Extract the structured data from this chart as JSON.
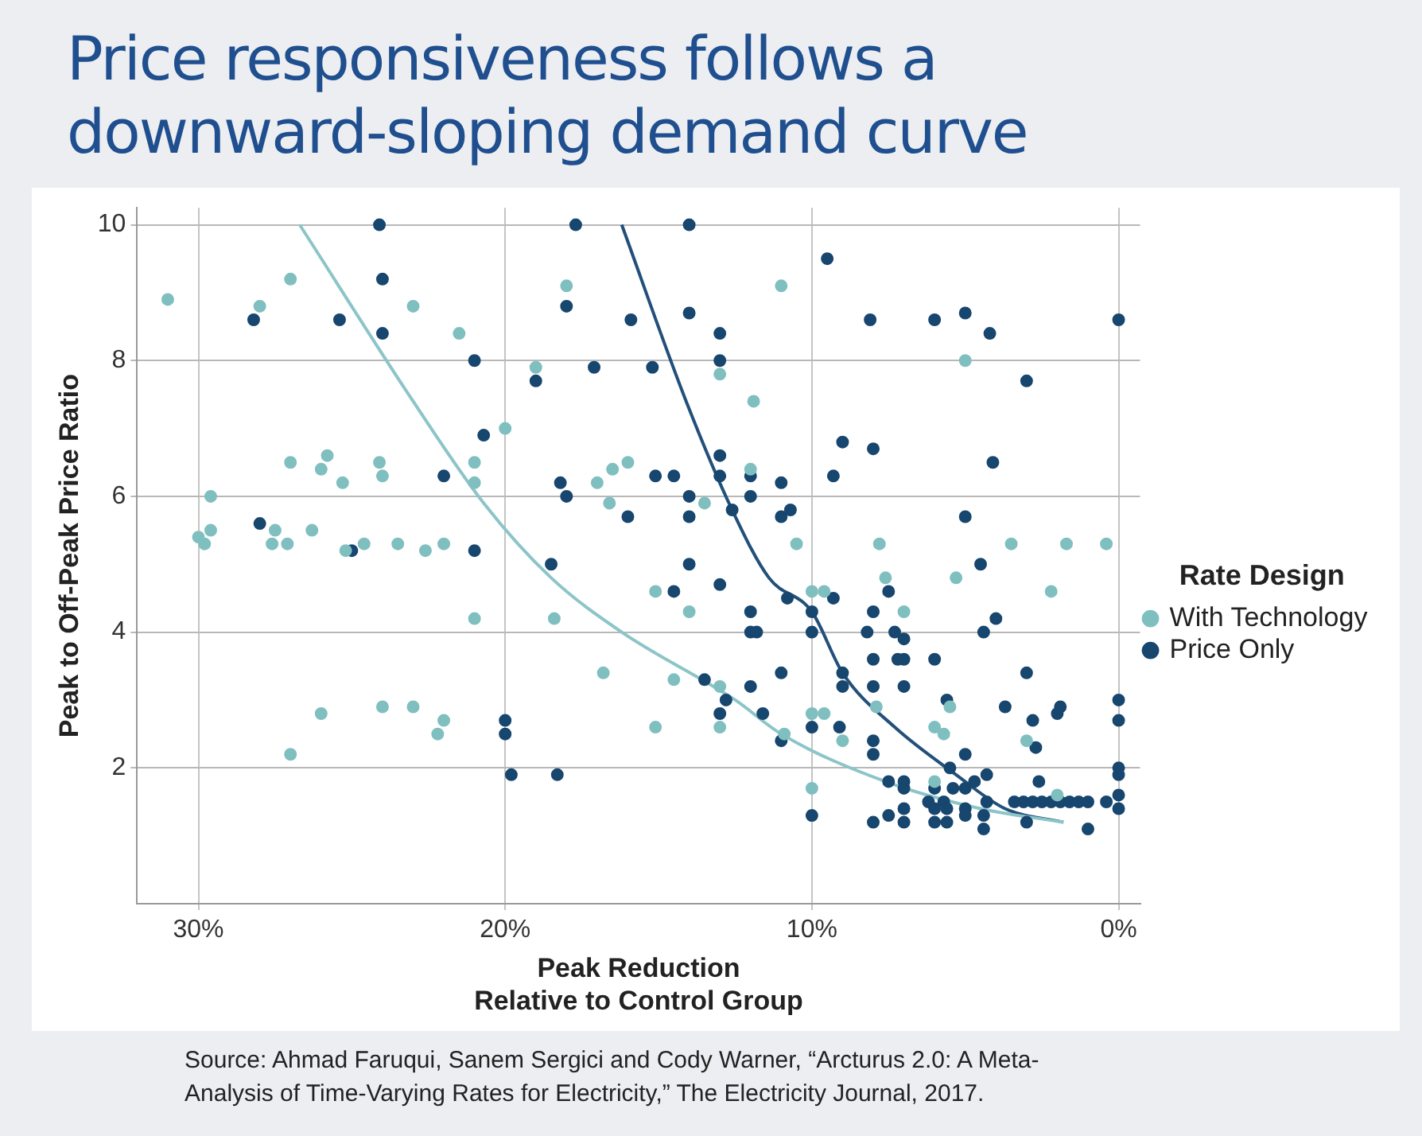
{
  "chart_data": {
    "type": "scatter",
    "title": "Price responsiveness follows a downward-sloping demand curve",
    "xlabel": "Peak Reduction\nRelative to Control Group",
    "ylabel": "Peak to Off-Peak Price Ratio",
    "legend_title": "Rate Design",
    "annotations": [
      "Source: Ahmad Faruqui, Sanem Sergici and Cody Warner, “Arcturus 2.0: A Meta-Analysis of Time-Varying Rates for Electricity,” The Electricity Journal, 2017."
    ],
    "xlim": [
      32,
      -0.7
    ],
    "ylim": [
      0,
      10.25
    ],
    "xticks": [
      {
        "value": 30,
        "label": "30%"
      },
      {
        "value": 20,
        "label": "20%"
      },
      {
        "value": 10,
        "label": "10%"
      },
      {
        "value": 0,
        "label": "0%"
      }
    ],
    "yticks": [
      2,
      4,
      6,
      8,
      10
    ],
    "grid": true,
    "legend": "right",
    "marker": "circle",
    "series": [
      {
        "name": "With Technology",
        "color": "#80bfc0",
        "x": [
          31.0,
          27.0,
          28.0,
          23.0,
          21.5,
          19.0,
          18.0,
          20.0,
          27.0,
          25.8,
          26.0,
          25.3,
          24.1,
          24.0,
          21.0,
          21.0,
          17.0,
          16.5,
          16.6,
          29.6,
          29.6,
          30.0,
          29.8,
          27.5,
          27.6,
          27.1,
          26.3,
          25.2,
          24.6,
          23.5,
          22.6,
          22.0,
          11.0,
          13.0,
          11.9,
          16.0,
          13.5,
          12.0,
          10.5,
          7.8,
          3.5,
          1.7,
          0.4,
          7.6,
          5.3,
          5.0,
          21.0,
          18.4,
          16.8,
          26.0,
          27.0,
          24.0,
          23.0,
          22.0,
          22.2,
          15.1,
          14.0,
          10.0,
          9.6,
          7.0,
          2.2,
          14.5,
          13.0,
          7.9,
          5.5,
          15.1,
          13.0,
          10.9,
          10.0,
          9.6,
          9.0,
          6.0,
          5.7,
          3.0,
          6.0,
          10.0,
          2.0
        ],
        "values": [
          8.9,
          9.2,
          8.8,
          8.8,
          8.4,
          7.9,
          9.1,
          7.0,
          6.5,
          6.6,
          6.4,
          6.2,
          6.5,
          6.3,
          6.5,
          6.2,
          6.2,
          6.4,
          5.9,
          6.0,
          5.5,
          5.4,
          5.3,
          5.5,
          5.3,
          5.3,
          5.5,
          5.2,
          5.3,
          5.3,
          5.2,
          5.3,
          9.1,
          7.8,
          7.4,
          6.5,
          5.9,
          6.4,
          5.3,
          5.3,
          5.3,
          5.3,
          5.3,
          4.8,
          4.8,
          8.0,
          4.2,
          4.2,
          3.4,
          2.8,
          2.2,
          2.9,
          2.9,
          2.7,
          2.5,
          4.6,
          4.3,
          4.6,
          4.6,
          4.3,
          4.6,
          3.3,
          3.2,
          2.9,
          2.9,
          2.6,
          2.6,
          2.5,
          2.8,
          2.8,
          2.4,
          2.6,
          2.5,
          2.4,
          1.8,
          1.7,
          1.6
        ]
      },
      {
        "name": "Price Only",
        "color": "#17466f",
        "x": [
          28.2,
          25.4,
          24.1,
          24.0,
          24.0,
          21.0,
          19.0,
          17.7,
          18.0,
          17.1,
          20.7,
          22.0,
          18.2,
          18.0,
          28.0,
          25.0,
          21.0,
          18.5,
          14.0,
          9.5,
          15.9,
          14.0,
          13.0,
          13.0,
          15.2,
          8.1,
          6.0,
          5.0,
          4.2,
          3.0,
          0.0,
          15.1,
          14.5,
          14.0,
          16.0,
          14.0,
          13.0,
          13.0,
          12.6,
          12.0,
          12.0,
          11.0,
          11.0,
          10.7,
          9.3,
          9.0,
          8.0,
          4.1,
          5.0,
          4.5,
          14.0,
          20.0,
          20.0,
          19.8,
          18.3,
          14.5,
          13.0,
          12.0,
          12.0,
          11.8,
          10.8,
          10.0,
          10.0,
          9.3,
          7.5,
          8.0,
          8.2,
          7.3,
          7.0,
          7.2,
          7.0,
          8.0,
          6.0,
          4.4,
          4.0,
          13.5,
          12.8,
          12.0,
          11.0,
          9.0,
          9.0,
          8.0,
          7.0,
          5.6,
          3.7,
          3.0,
          1.9,
          2.0,
          2.8,
          0.0,
          0.0,
          13.0,
          11.6,
          11.0,
          10.0,
          9.1,
          8.0,
          8.0,
          5.0,
          2.7,
          5.5,
          7.5,
          7.0,
          7.0,
          6.0,
          5.4,
          5.0,
          4.7,
          4.3,
          2.6,
          6.2,
          5.7,
          4.3,
          3.4,
          3.1,
          2.8,
          2.5,
          2.2,
          1.9,
          1.6,
          1.3,
          1.0,
          0.4,
          0.0,
          0.0,
          0.0,
          0.0,
          10.0,
          8.0,
          7.5,
          7.0,
          7.0,
          6.0,
          6.0,
          5.6,
          5.6,
          5.0,
          5.0,
          4.4,
          4.4,
          3.0,
          1.0
        ],
        "values": [
          8.6,
          8.6,
          10.0,
          9.2,
          8.4,
          8.0,
          7.7,
          10.0,
          8.8,
          7.9,
          6.9,
          6.3,
          6.2,
          6.0,
          5.6,
          5.2,
          5.2,
          5.0,
          10.0,
          9.5,
          8.6,
          8.7,
          8.4,
          8.0,
          7.9,
          8.6,
          8.6,
          8.7,
          8.4,
          7.7,
          8.6,
          6.3,
          6.3,
          6.0,
          5.7,
          5.7,
          6.6,
          6.3,
          5.8,
          6.3,
          6.0,
          6.2,
          5.7,
          5.8,
          6.3,
          6.8,
          6.7,
          6.5,
          5.7,
          5.0,
          5.0,
          2.7,
          2.5,
          1.9,
          1.9,
          4.6,
          4.7,
          4.3,
          4.0,
          4.0,
          4.5,
          4.3,
          4.0,
          4.5,
          4.6,
          4.3,
          4.0,
          4.0,
          3.9,
          3.6,
          3.6,
          3.6,
          3.6,
          4.0,
          4.2,
          3.3,
          3.0,
          3.2,
          3.4,
          3.4,
          3.2,
          3.2,
          3.2,
          3.0,
          2.9,
          3.4,
          2.9,
          2.8,
          2.7,
          3.0,
          2.7,
          2.8,
          2.8,
          2.4,
          2.6,
          2.6,
          2.4,
          2.2,
          2.2,
          2.3,
          2.0,
          1.8,
          1.8,
          1.7,
          1.7,
          1.7,
          1.7,
          1.8,
          1.9,
          1.8,
          1.5,
          1.5,
          1.5,
          1.5,
          1.5,
          1.5,
          1.5,
          1.5,
          1.5,
          1.5,
          1.5,
          1.5,
          1.5,
          1.6,
          1.4,
          2.0,
          1.9,
          1.3,
          1.2,
          1.3,
          1.4,
          1.2,
          1.4,
          1.2,
          1.4,
          1.2,
          1.4,
          1.3,
          1.3,
          1.1,
          1.2,
          1.1
        ]
      },
      {
        "type": "line",
        "marker": "none",
        "color": "#8cc5c8",
        "x": [
          26.7,
          23.0,
          20.7,
          18.5,
          16.2,
          12.5,
          11.0,
          7.6,
          4.5,
          1.8
        ],
        "values": [
          10.0,
          7.4,
          5.9,
          4.8,
          4.0,
          3.0,
          2.5,
          1.8,
          1.4,
          1.2
        ]
      },
      {
        "type": "line",
        "marker": "none",
        "color": "#23507a",
        "x": [
          16.2,
          14.1,
          12.6,
          11.4,
          10.0,
          9.0,
          7.3,
          5.3,
          3.7,
          1.8
        ],
        "values": [
          10.0,
          7.4,
          5.8,
          4.8,
          4.3,
          3.4,
          2.6,
          1.9,
          1.4,
          1.2
        ]
      }
    ]
  }
}
